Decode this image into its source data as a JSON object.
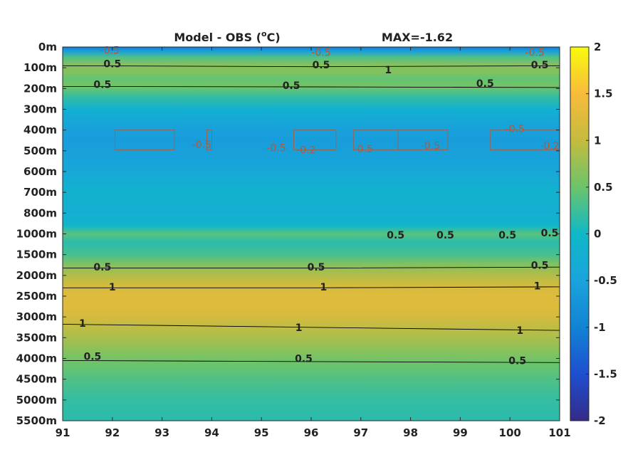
{
  "chart_data": {
    "type": "heatmap",
    "title": "Model - OBS (°C)",
    "subtitle": "MAX=-1.62",
    "title_parts": {
      "pre": "Model - OBS (",
      "degree": "o",
      "post": "C)"
    },
    "x": [
      91,
      92,
      93,
      94,
      95,
      96,
      97,
      98,
      99,
      100,
      101
    ],
    "xlim": [
      91,
      101
    ],
    "y_levels": [
      "0m",
      "100m",
      "200m",
      "300m",
      "400m",
      "500m",
      "600m",
      "700m",
      "800m",
      "1000m",
      "1500m",
      "2000m",
      "2500m",
      "3000m",
      "3500m",
      "4000m",
      "4500m",
      "5000m",
      "5500m"
    ],
    "y_reversed": true,
    "colorbar": {
      "min": -2,
      "max": 2,
      "ticks": [
        "2",
        "1.5",
        "1",
        "0.5",
        "0",
        "-0.5",
        "-1",
        "-1.5",
        "-2"
      ],
      "colormap": "parula"
    },
    "profile": {
      "depth_index": [
        0,
        0.2,
        0.5,
        0.9,
        1.0,
        1.2,
        1.5,
        1.9,
        2.0,
        2.4,
        3.0,
        4.0,
        4.5,
        5.0,
        6.0,
        7.0,
        8.0,
        8.6,
        9.0,
        9.4,
        10.0,
        10.5,
        11.0,
        11.5,
        12.0,
        12.5,
        13.0,
        14.0,
        15.0,
        15.5,
        16.0,
        17.0,
        18.0
      ],
      "value": [
        -1.05,
        -0.55,
        0.35,
        0.7,
        0.6,
        0.65,
        0.45,
        0.55,
        0.45,
        0.2,
        -0.2,
        -0.55,
        -0.6,
        -0.55,
        -0.4,
        -0.15,
        -0.25,
        -0.05,
        0.4,
        0.15,
        0.3,
        0.65,
        0.9,
        1.15,
        1.25,
        1.25,
        1.15,
        0.85,
        0.55,
        0.45,
        0.35,
        0.2,
        0.15
      ]
    },
    "contours": [
      {
        "level": "0.5",
        "y": [
          0.9,
          0.95,
          0.9
        ]
      },
      {
        "level": "0.5",
        "y": [
          1.9,
          1.92,
          1.95
        ]
      },
      {
        "level": "0.5",
        "y": [
          10.65,
          10.65,
          10.6
        ]
      },
      {
        "level": "1",
        "y": [
          11.6,
          11.6,
          11.55
        ]
      },
      {
        "level": "1",
        "y": [
          13.35,
          13.5,
          13.65
        ]
      },
      {
        "level": "0.5",
        "y": [
          15.1,
          15.15,
          15.2
        ]
      }
    ],
    "contour_labels": [
      {
        "text": "0.5",
        "x": 92.0,
        "y": 0.8
      },
      {
        "text": "0.5",
        "x": 96.2,
        "y": 0.85
      },
      {
        "text": "0.5",
        "x": 100.6,
        "y": 0.85
      },
      {
        "text": "1",
        "x": 97.55,
        "y": 1.1
      },
      {
        "text": "0.5",
        "x": 91.8,
        "y": 1.8
      },
      {
        "text": "0.5",
        "x": 95.6,
        "y": 1.85
      },
      {
        "text": "0.5",
        "x": 99.5,
        "y": 1.75
      },
      {
        "text": "0.5",
        "x": 97.7,
        "y": 9.05
      },
      {
        "text": "0.5",
        "x": 98.7,
        "y": 9.05
      },
      {
        "text": "0.5",
        "x": 99.95,
        "y": 9.05
      },
      {
        "text": "0.5",
        "x": 100.8,
        "y": 8.95
      },
      {
        "text": "0.5",
        "x": 91.8,
        "y": 10.6
      },
      {
        "text": "0.5",
        "x": 96.1,
        "y": 10.6
      },
      {
        "text": "0.5",
        "x": 100.6,
        "y": 10.5
      },
      {
        "text": "1",
        "x": 92.0,
        "y": 11.55
      },
      {
        "text": "1",
        "x": 96.25,
        "y": 11.55
      },
      {
        "text": "1",
        "x": 100.55,
        "y": 11.5
      },
      {
        "text": "1",
        "x": 91.4,
        "y": 13.3
      },
      {
        "text": "1",
        "x": 95.75,
        "y": 13.5
      },
      {
        "text": "1",
        "x": 100.2,
        "y": 13.65
      },
      {
        "text": "0.5",
        "x": 91.6,
        "y": 14.9
      },
      {
        "text": "0.5",
        "x": 95.85,
        "y": 15.0
      },
      {
        "text": "0.5",
        "x": 100.15,
        "y": 15.1
      }
    ],
    "neg_labels": [
      {
        "text": "-0.5",
        "x": 91.95,
        "y": 0.15
      },
      {
        "text": "-0.5",
        "x": 96.2,
        "y": 0.25
      },
      {
        "text": "-0.5",
        "x": 100.5,
        "y": 0.25
      },
      {
        "text": "-0.5",
        "x": 93.8,
        "y": 4.7
      },
      {
        "text": "-0.5",
        "x": 95.3,
        "y": 4.85
      },
      {
        "text": "-0.2",
        "x": 95.9,
        "y": 4.95
      },
      {
        "text": "-0.5",
        "x": 97.05,
        "y": 4.9
      },
      {
        "text": "-0.5",
        "x": 98.4,
        "y": 4.75
      },
      {
        "text": "-0.5",
        "x": 100.1,
        "y": 3.95
      },
      {
        "text": "-0.2",
        "x": 100.8,
        "y": 4.75
      }
    ],
    "colors": {
      "dark_blue": "#352a87",
      "blue": "#1e7bd9",
      "teal": "#0fb8c8",
      "green": "#83c35a",
      "yellow": "#f9fb0e",
      "orange": "#f0b93d",
      "contour_positive": "#000000",
      "contour_negative": "#b05a3a"
    }
  }
}
